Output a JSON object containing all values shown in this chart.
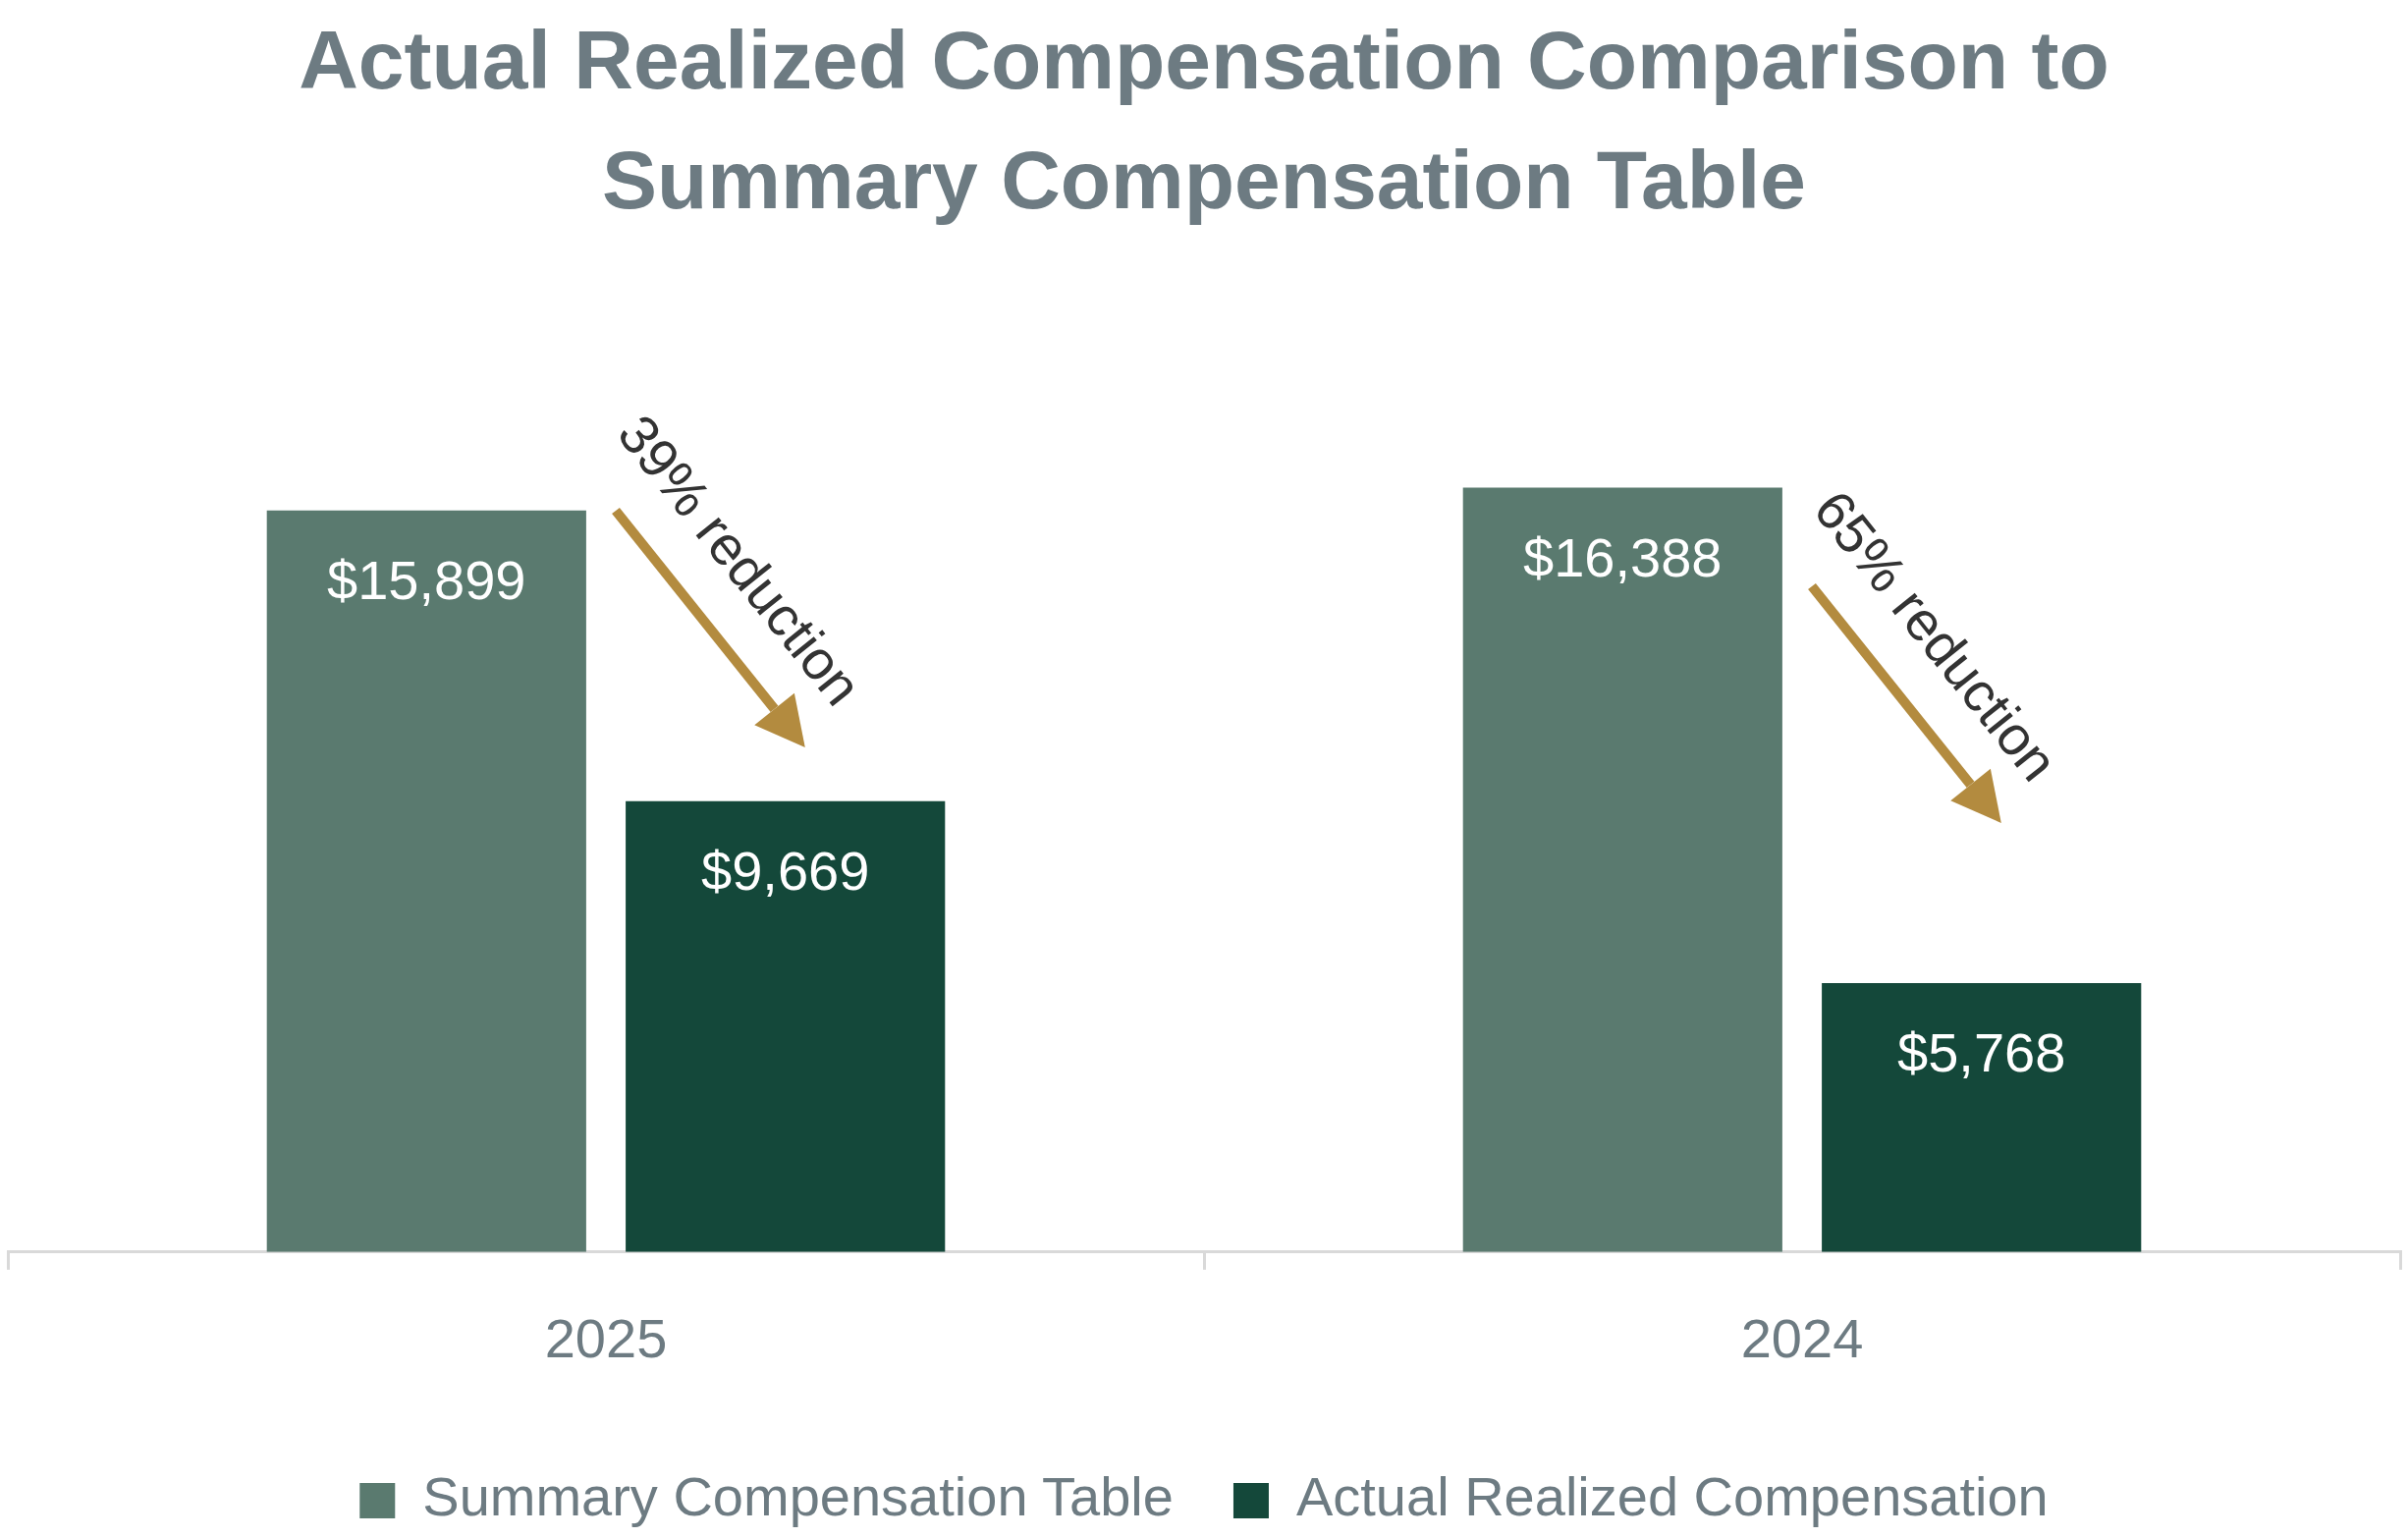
{
  "chart_data": {
    "type": "bar",
    "title": "Actual Realized Compensation Comparison to Summary Compensation Table",
    "categories": [
      "2025",
      "2024"
    ],
    "series": [
      {
        "name": "Summary Compensation Table",
        "color": "#5a7a6f",
        "values": [
          15899,
          16388
        ],
        "value_labels": [
          "$15,899",
          "$16,388"
        ]
      },
      {
        "name": "Actual Realized Compensation",
        "color": "#14483a",
        "values": [
          9669,
          5768
        ],
        "value_labels": [
          "$9,669",
          "$5,768"
        ]
      }
    ],
    "annotations": [
      "39% reduction",
      "65% reduction"
    ],
    "grid": false,
    "legend": "bottom"
  }
}
